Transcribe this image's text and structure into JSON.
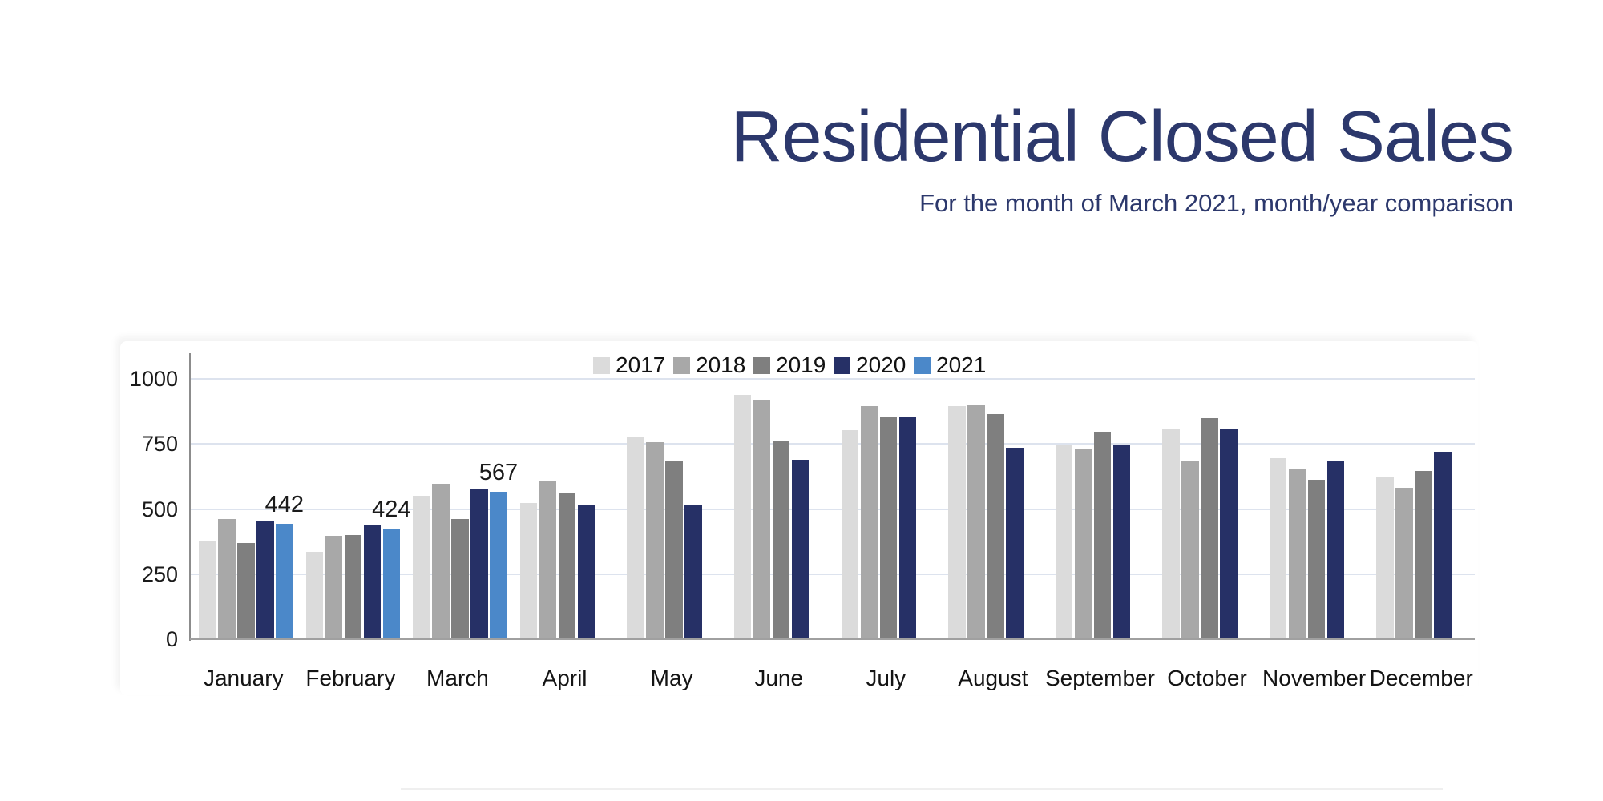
{
  "header": {
    "title": "Residential Closed Sales",
    "subtitle": "For the month of March 2021, month/year comparison",
    "title_color": "#2c386c"
  },
  "chart_data": {
    "type": "bar",
    "title": "Residential Closed Sales",
    "subtitle": "For the month of March 2021, month/year comparison",
    "categories": [
      "January",
      "February",
      "March",
      "April",
      "May",
      "June",
      "July",
      "August",
      "September",
      "October",
      "November",
      "December"
    ],
    "series": [
      {
        "name": "2017",
        "color": "#dbdbdb",
        "values": [
          378,
          336,
          552,
          522,
          778,
          940,
          803,
          895,
          745,
          807,
          696,
          624
        ]
      },
      {
        "name": "2018",
        "color": "#a8a8a8",
        "values": [
          463,
          398,
          597,
          606,
          758,
          917,
          896,
          897,
          731,
          683,
          655,
          583
        ]
      },
      {
        "name": "2019",
        "color": "#7f7f7f",
        "values": [
          369,
          401,
          461,
          564,
          683,
          763,
          855,
          866,
          797,
          849,
          612,
          647
        ]
      },
      {
        "name": "2020",
        "color": "#263066",
        "values": [
          452,
          438,
          576,
          515,
          513,
          690,
          855,
          734,
          744,
          807,
          687,
          719
        ]
      },
      {
        "name": "2021",
        "color": "#4b88c9",
        "values": [
          442,
          424,
          567,
          null,
          null,
          null,
          null,
          null,
          null,
          null,
          null,
          null
        ]
      }
    ],
    "bar_labels": [
      {
        "series": "2021",
        "category": "January",
        "text": "442"
      },
      {
        "series": "2021",
        "category": "February",
        "text": "424"
      },
      {
        "series": "2021",
        "category": "March",
        "text": "567"
      }
    ],
    "yticks": [
      0,
      250,
      500,
      750,
      1000
    ],
    "ylim": [
      0,
      1100
    ],
    "grid": true,
    "legend_position": "top-center",
    "grid_color": "#dde3ee",
    "spine_color": "#8c8c8c",
    "baseline_color": "#a0a0a0",
    "tick_label_color": "#1a1a1a"
  }
}
